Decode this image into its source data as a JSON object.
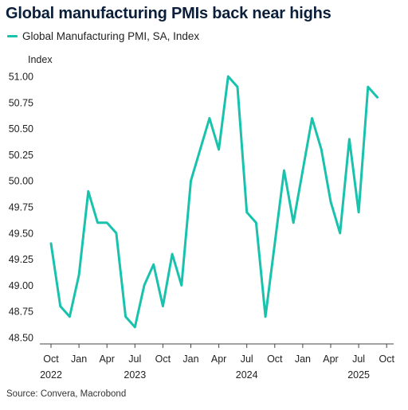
{
  "title": "Global manufacturing PMIs back near highs",
  "source": "Source: Convera, Macrobond",
  "colors": {
    "line": "#19c2ad",
    "axis": "#444444",
    "title": "#0b1f3a"
  },
  "chart_data": {
    "type": "line",
    "title": "Global manufacturing PMIs back near highs",
    "ylabel": "Index",
    "ylim": [
      48.5,
      51.0
    ],
    "yticks": [
      "51.00",
      "50.75",
      "50.50",
      "50.25",
      "50.00",
      "49.75",
      "49.50",
      "49.25",
      "49.00",
      "48.75",
      "48.50"
    ],
    "xticks": [
      {
        "label": "Oct",
        "year": "2022",
        "x": "2022-10"
      },
      {
        "label": "Jan",
        "year": "",
        "x": "2023-01"
      },
      {
        "label": "Apr",
        "year": "",
        "x": "2023-04"
      },
      {
        "label": "Jul",
        "year": "2023",
        "x": "2023-07"
      },
      {
        "label": "Oct",
        "year": "",
        "x": "2023-10"
      },
      {
        "label": "Jan",
        "year": "",
        "x": "2024-01"
      },
      {
        "label": "Apr",
        "year": "",
        "x": "2024-04"
      },
      {
        "label": "Jul",
        "year": "2024",
        "x": "2024-07"
      },
      {
        "label": "Oct",
        "year": "",
        "x": "2024-10"
      },
      {
        "label": "Jan",
        "year": "",
        "x": "2025-01"
      },
      {
        "label": "Apr",
        "year": "",
        "x": "2025-04"
      },
      {
        "label": "Jul",
        "year": "2025",
        "x": "2025-07"
      },
      {
        "label": "Oct",
        "year": "",
        "x": "2025-10"
      }
    ],
    "series": [
      {
        "name": "Global Manufacturing PMI, SA, Index",
        "x": [
          "2022-10",
          "2022-11",
          "2022-12",
          "2023-01",
          "2023-02",
          "2023-03",
          "2023-04",
          "2023-05",
          "2023-06",
          "2023-07",
          "2023-08",
          "2023-09",
          "2023-10",
          "2023-11",
          "2023-12",
          "2024-01",
          "2024-02",
          "2024-03",
          "2024-04",
          "2024-05",
          "2024-06",
          "2024-07",
          "2024-08",
          "2024-09",
          "2024-10",
          "2024-11",
          "2024-12",
          "2025-01",
          "2025-02",
          "2025-03",
          "2025-04",
          "2025-05",
          "2025-06",
          "2025-07",
          "2025-08",
          "2025-09"
        ],
        "values": [
          49.4,
          48.8,
          48.7,
          49.1,
          49.9,
          49.6,
          49.6,
          49.5,
          48.7,
          48.6,
          49.0,
          49.2,
          48.8,
          49.3,
          49.0,
          50.0,
          50.3,
          50.6,
          50.3,
          51.0,
          50.9,
          49.7,
          49.6,
          48.7,
          49.4,
          50.1,
          49.6,
          50.1,
          50.6,
          50.3,
          49.8,
          49.5,
          50.4,
          49.7,
          50.9,
          50.8
        ]
      }
    ]
  }
}
